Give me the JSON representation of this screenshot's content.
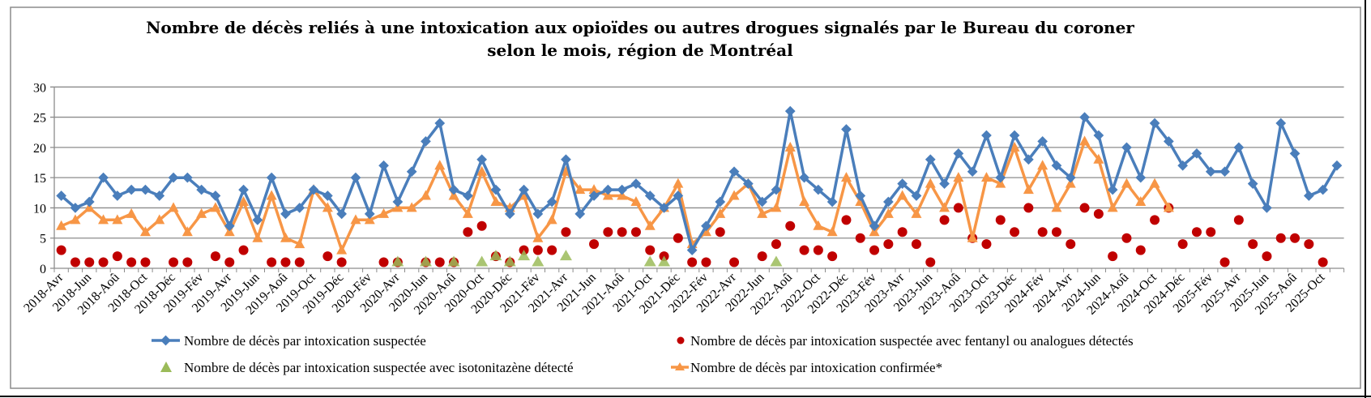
{
  "chart_data": {
    "type": "line",
    "title_lines": [
      "Nombre de décès reliés à une intoxication aux opioïdes  ou autres drogues signalés par le Bureau du coroner",
      "selon le mois, région de Montréal"
    ],
    "xlabel": "",
    "ylabel": "",
    "ylim": [
      0,
      30
    ],
    "y_ticks": [
      "0",
      "5",
      "10",
      "15",
      "20",
      "25",
      "30"
    ],
    "grid": true,
    "legend_position": "bottom",
    "x_tick_labels": [
      "2018-Avr",
      "2018-Jun",
      "2018-Aoû",
      "2018-Oct",
      "2018-Déc",
      "2019-Fév",
      "2019-Avr",
      "2019-Jun",
      "2019-Aoû",
      "2019-Oct",
      "2019-Déc",
      "2020-Fév",
      "2020-Avr",
      "2020-Jun",
      "2020-Aoû",
      "2020-Oct",
      "2020-Déc",
      "2021-Fév",
      "2021-Avr",
      "2021-Jun",
      "2021-Aoû",
      "2021-Oct",
      "2021-Déc",
      "2022-Fév",
      "2022-Avr",
      "2022-Jun",
      "2022-Aoû",
      "2022-Oct",
      "2022-Déc",
      "2023-Fév",
      "2023-Avr",
      "2023-Jun",
      "2023-Aoû",
      "2023-Oct",
      "2023-Déc",
      "2024-Fév",
      "2024-Avr",
      "2024-Jun",
      "2024-Aoû",
      "2024-Oct",
      "2024-Déc",
      "2025-Fév",
      "2025-Avr",
      "2025-Jun",
      "2025-Aoû",
      "2025-Oct"
    ],
    "series": [
      {
        "name": "Nombre de décès par intoxication suspectée",
        "style": "line-diamond",
        "color": "#4a7ebb",
        "values": [
          12,
          10,
          11,
          15,
          12,
          13,
          13,
          12,
          15,
          15,
          13,
          12,
          7,
          13,
          8,
          15,
          9,
          10,
          13,
          12,
          9,
          15,
          9,
          17,
          11,
          16,
          21,
          24,
          13,
          12,
          18,
          13,
          9,
          13,
          9,
          11,
          18,
          9,
          12,
          13,
          13,
          14,
          12,
          10,
          12,
          3,
          7,
          11,
          16,
          14,
          11,
          13,
          26,
          15,
          13,
          11,
          23,
          12,
          7,
          11,
          14,
          12,
          18,
          14,
          19,
          16,
          22,
          15,
          22,
          18,
          21,
          17,
          15,
          25,
          22,
          13,
          20,
          15,
          24,
          21,
          17,
          19,
          16,
          16,
          20,
          14,
          10,
          24,
          19,
          12,
          13,
          17
        ]
      },
      {
        "name": "Nombre de décès par intoxication suspectée avec fentanyl ou analogues détectés",
        "style": "marker-circle",
        "color": "#c00000",
        "values": [
          3,
          1,
          1,
          1,
          2,
          1,
          1,
          null,
          1,
          1,
          null,
          2,
          1,
          3,
          null,
          1,
          1,
          1,
          null,
          2,
          1,
          null,
          null,
          1,
          1,
          null,
          1,
          1,
          1,
          6,
          7,
          2,
          1,
          3,
          3,
          3,
          6,
          null,
          4,
          6,
          6,
          6,
          3,
          2,
          5,
          1,
          1,
          6,
          1,
          null,
          2,
          4,
          7,
          3,
          3,
          2,
          8,
          5,
          3,
          4,
          6,
          4,
          1,
          8,
          10,
          5,
          4,
          8,
          6,
          10,
          6,
          6,
          4,
          10,
          9,
          2,
          5,
          3,
          8,
          10,
          4,
          6,
          6,
          1,
          8,
          4,
          2,
          5,
          5,
          4,
          1,
          null
        ]
      },
      {
        "name": "Nombre de décès par intoxication suspectée avec isotonitazène détecté",
        "style": "marker-triangle",
        "color": "#9bbb59",
        "values": [
          null,
          null,
          null,
          null,
          null,
          null,
          null,
          null,
          null,
          null,
          null,
          null,
          null,
          null,
          null,
          null,
          null,
          null,
          null,
          null,
          null,
          null,
          null,
          null,
          1,
          null,
          1,
          null,
          1,
          null,
          1,
          2,
          1,
          2,
          1,
          null,
          2,
          null,
          null,
          null,
          null,
          null,
          1,
          1,
          null,
          null,
          null,
          null,
          null,
          null,
          null,
          1,
          null,
          null,
          null,
          null,
          null,
          null,
          null,
          null,
          null,
          null,
          null,
          null,
          null,
          null,
          null,
          null,
          null,
          null,
          null,
          null,
          null,
          null,
          null,
          null,
          null,
          null,
          null,
          null,
          null,
          null,
          null,
          null,
          null,
          null,
          null,
          null,
          null,
          null,
          null,
          null
        ]
      },
      {
        "name": "Nombre de décès par intoxication confirmée*",
        "style": "line-triangle",
        "color": "#f79646",
        "values": [
          7,
          8,
          10,
          8,
          8,
          9,
          6,
          8,
          10,
          6,
          9,
          10,
          6,
          11,
          5,
          12,
          5,
          4,
          13,
          10,
          3,
          8,
          8,
          9,
          10,
          10,
          12,
          17,
          12,
          9,
          16,
          11,
          10,
          12,
          5,
          8,
          16,
          13,
          13,
          12,
          12,
          11,
          7,
          10,
          14,
          4,
          6,
          9,
          12,
          14,
          9,
          10,
          20,
          11,
          7,
          6,
          15,
          11,
          6,
          9,
          12,
          9,
          14,
          10,
          15,
          5,
          15,
          14,
          20,
          13,
          17,
          10,
          14,
          21,
          18,
          10,
          14,
          11,
          14,
          10,
          null,
          null,
          null,
          null,
          null,
          null,
          null,
          null,
          null,
          null,
          null,
          null
        ]
      }
    ]
  }
}
